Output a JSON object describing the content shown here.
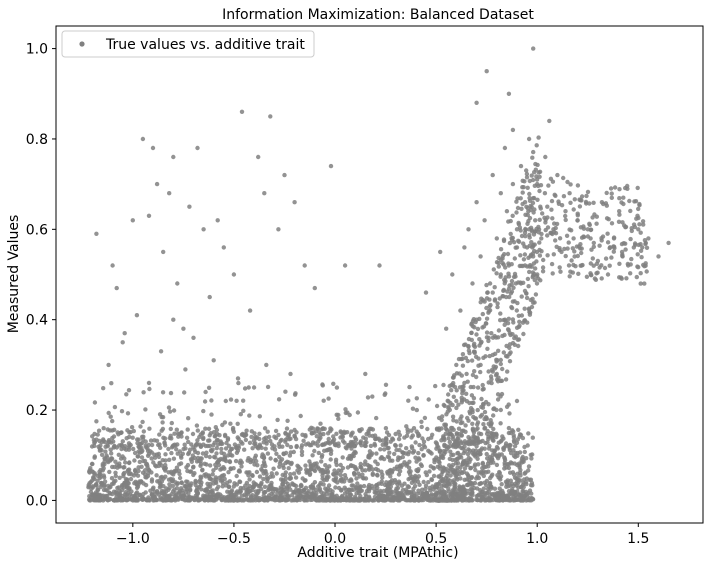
{
  "chart_data": {
    "type": "scatter",
    "title": "Information Maximization: Balanced Dataset",
    "xlabel": "Additive trait (MPAthic)",
    "ylabel": "Measured Values",
    "xlim": [
      -1.38,
      1.82
    ],
    "ylim": [
      -0.05,
      1.05
    ],
    "xticks": [
      -1.0,
      -0.5,
      0.0,
      0.5,
      1.0,
      1.5
    ],
    "xtick_labels": [
      "−1.0",
      "−0.5",
      "0.0",
      "0.5",
      "1.0",
      "1.5"
    ],
    "yticks": [
      0.0,
      0.2,
      0.4,
      0.6,
      0.8,
      1.0
    ],
    "ytick_labels": [
      "0.0",
      "0.2",
      "0.4",
      "0.6",
      "0.8",
      "1.0"
    ],
    "grid": false,
    "legend_position": "top-left",
    "series": [
      {
        "name": "True values vs. additive trait",
        "color": "#808080",
        "marker": "circle",
        "points": [
          [
            -1.18,
            0.59
          ],
          [
            -1.1,
            0.52
          ],
          [
            -1.08,
            0.47
          ],
          [
            -1.04,
            0.37
          ],
          [
            -1.0,
            0.62
          ],
          [
            -0.95,
            0.8
          ],
          [
            -0.92,
            0.63
          ],
          [
            -0.9,
            0.78
          ],
          [
            -0.88,
            0.7
          ],
          [
            -0.85,
            0.55
          ],
          [
            -0.82,
            0.68
          ],
          [
            -0.8,
            0.76
          ],
          [
            -0.78,
            0.48
          ],
          [
            -0.75,
            0.38
          ],
          [
            -0.72,
            0.65
          ],
          [
            -0.68,
            0.78
          ],
          [
            -0.65,
            0.6
          ],
          [
            -0.62,
            0.45
          ],
          [
            -0.58,
            0.62
          ],
          [
            -0.55,
            0.56
          ],
          [
            -0.5,
            0.5
          ],
          [
            -0.46,
            0.86
          ],
          [
            -0.42,
            0.42
          ],
          [
            -0.38,
            0.76
          ],
          [
            -0.35,
            0.68
          ],
          [
            -0.32,
            0.85
          ],
          [
            -0.28,
            0.6
          ],
          [
            -0.25,
            0.72
          ],
          [
            -0.2,
            0.66
          ],
          [
            -0.15,
            0.52
          ],
          [
            -0.1,
            0.47
          ],
          [
            -0.02,
            0.74
          ],
          [
            0.05,
            0.52
          ],
          [
            0.15,
            0.28
          ],
          [
            0.22,
            0.52
          ],
          [
            -1.12,
            0.3
          ],
          [
            -1.05,
            0.35
          ],
          [
            -0.98,
            0.41
          ],
          [
            -0.92,
            0.26
          ],
          [
            -0.86,
            0.33
          ],
          [
            -0.8,
            0.4
          ],
          [
            -0.74,
            0.29
          ],
          [
            -0.7,
            0.36
          ],
          [
            -0.64,
            0.24
          ],
          [
            -0.6,
            0.31
          ],
          [
            -0.54,
            0.22
          ],
          [
            -0.48,
            0.27
          ],
          [
            -0.4,
            0.25
          ],
          [
            -0.34,
            0.3
          ],
          [
            -0.22,
            0.28
          ],
          [
            0.45,
            0.46
          ],
          [
            0.52,
            0.55
          ],
          [
            0.55,
            0.38
          ],
          [
            0.58,
            0.5
          ],
          [
            0.6,
            0.3
          ],
          [
            0.62,
            0.42
          ],
          [
            0.64,
            0.56
          ],
          [
            0.66,
            0.6
          ],
          [
            0.68,
            0.48
          ],
          [
            0.7,
            0.66
          ],
          [
            0.72,
            0.54
          ],
          [
            0.74,
            0.62
          ],
          [
            0.75,
            0.95
          ],
          [
            0.78,
            0.72
          ],
          [
            0.8,
            0.58
          ],
          [
            0.82,
            0.68
          ],
          [
            0.84,
            0.78
          ],
          [
            0.85,
            0.64
          ],
          [
            0.86,
            0.9
          ],
          [
            0.88,
            0.7
          ],
          [
            0.9,
            0.6
          ],
          [
            0.92,
            0.74
          ],
          [
            0.94,
            0.66
          ],
          [
            0.95,
            0.56
          ],
          [
            0.96,
            0.8
          ],
          [
            0.98,
            1.0
          ],
          [
            0.99,
            0.62
          ],
          [
            1.0,
            0.7
          ],
          [
            1.02,
            0.58
          ],
          [
            1.04,
            0.76
          ],
          [
            1.05,
            0.65
          ],
          [
            1.06,
            0.84
          ],
          [
            1.08,
            0.6
          ],
          [
            1.1,
            0.72
          ],
          [
            1.12,
            0.55
          ],
          [
            1.14,
            0.64
          ],
          [
            1.16,
            0.68
          ],
          [
            1.18,
            0.58
          ],
          [
            1.2,
            0.62
          ],
          [
            1.22,
            0.52
          ],
          [
            1.25,
            0.6
          ],
          [
            1.28,
            0.57
          ],
          [
            1.3,
            0.53
          ],
          [
            1.32,
            0.66
          ],
          [
            1.35,
            0.5
          ],
          [
            1.38,
            0.58
          ],
          [
            1.42,
            0.55
          ],
          [
            1.45,
            0.52
          ],
          [
            1.5,
            0.6
          ],
          [
            1.52,
            0.56
          ],
          [
            1.55,
            0.58
          ],
          [
            1.6,
            0.54
          ],
          [
            1.65,
            0.57
          ],
          [
            0.7,
            0.88
          ],
          [
            0.88,
            0.82
          ],
          [
            0.6,
            0.22
          ],
          [
            0.62,
            0.18
          ],
          [
            0.64,
            0.26
          ],
          [
            0.66,
            0.34
          ],
          [
            0.68,
            0.2
          ],
          [
            0.7,
            0.4
          ],
          [
            0.72,
            0.3
          ],
          [
            0.74,
            0.44
          ],
          [
            0.76,
            0.36
          ],
          [
            0.78,
            0.46
          ],
          [
            0.8,
            0.28
          ],
          [
            0.82,
            0.5
          ],
          [
            0.84,
            0.4
          ],
          [
            0.86,
            0.52
          ],
          [
            0.88,
            0.44
          ],
          [
            0.9,
            0.56
          ],
          [
            0.92,
            0.48
          ],
          [
            0.94,
            0.52
          ],
          [
            0.96,
            0.6
          ],
          [
            0.98,
            0.54
          ],
          [
            0.55,
            0.12
          ],
          [
            0.58,
            0.16
          ],
          [
            0.62,
            0.1
          ],
          [
            0.66,
            0.14
          ],
          [
            0.7,
            0.12
          ],
          [
            0.74,
            0.18
          ],
          [
            0.78,
            0.14
          ],
          [
            0.82,
            0.2
          ],
          [
            0.86,
            0.16
          ],
          [
            0.9,
            0.22
          ]
        ]
      }
    ],
    "dense_band": {
      "x_range": [
        -1.22,
        0.98
      ],
      "y_range": [
        0.0,
        0.16
      ],
      "description": "dense cloud of points near y = 0"
    }
  }
}
